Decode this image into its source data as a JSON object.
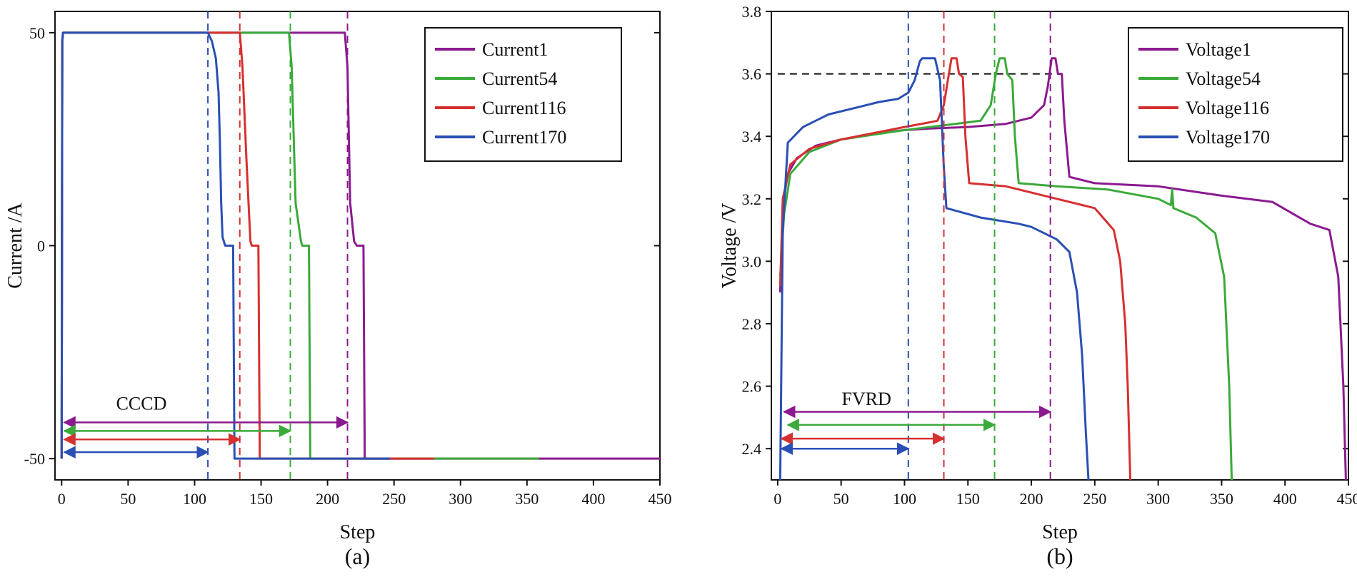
{
  "chart_data": [
    {
      "type": "line",
      "panel": "(a)",
      "caption": "(a)",
      "title": "",
      "xlabel": "Step",
      "ylabel": "Current /A",
      "xlim": [
        -5,
        450
      ],
      "ylim": [
        -55,
        55
      ],
      "xticks": [
        0,
        50,
        100,
        150,
        200,
        250,
        300,
        350,
        400,
        450
      ],
      "yticks": [
        -50,
        0,
        50
      ],
      "yticklabels": [
        "-50",
        "0",
        "50"
      ],
      "grid": false,
      "legend": "top-right",
      "series": [
        {
          "name": "Current1",
          "color": "#8b1a8f",
          "points": [
            [
              0,
              -50
            ],
            [
              0.5,
              48
            ],
            [
              1,
              50
            ],
            [
              213,
              50
            ],
            [
              215,
              42
            ],
            [
              217,
              10
            ],
            [
              220,
              1
            ],
            [
              222,
              0
            ],
            [
              227,
              0
            ],
            [
              228,
              -50
            ],
            [
              450,
              -50
            ]
          ]
        },
        {
          "name": "Current54",
          "color": "#3aaa3a",
          "points": [
            [
              0,
              -50
            ],
            [
              0.5,
              48
            ],
            [
              1,
              50
            ],
            [
              171,
              50
            ],
            [
              173,
              42
            ],
            [
              176,
              10
            ],
            [
              180,
              1
            ],
            [
              181,
              0
            ],
            [
              186,
              0
            ],
            [
              187,
              -50
            ],
            [
              359,
              -50
            ]
          ]
        },
        {
          "name": "Current116",
          "color": "#d63030",
          "points": [
            [
              0,
              -50
            ],
            [
              0.5,
              48
            ],
            [
              1,
              50
            ],
            [
              134,
              50
            ],
            [
              136,
              42
            ],
            [
              139,
              20
            ],
            [
              142,
              1
            ],
            [
              143,
              0
            ],
            [
              148,
              0
            ],
            [
              149,
              -50
            ],
            [
              280,
              -50
            ]
          ]
        },
        {
          "name": "Current170",
          "color": "#2a4fb5",
          "points": [
            [
              0,
              -50
            ],
            [
              0.5,
              48
            ],
            [
              1,
              50
            ],
            [
              110,
              50
            ],
            [
              113,
              48
            ],
            [
              116,
              44
            ],
            [
              118,
              36
            ],
            [
              119,
              25
            ],
            [
              120,
              10
            ],
            [
              121,
              2
            ],
            [
              123,
              0
            ],
            [
              129,
              0
            ],
            [
              130,
              -50
            ],
            [
              247,
              -50
            ]
          ]
        }
      ],
      "vlines": [
        {
          "x": 110,
          "color": "#2a4fb5"
        },
        {
          "x": 134,
          "color": "#d63030"
        },
        {
          "x": 172,
          "color": "#3aaa3a"
        },
        {
          "x": 215,
          "color": "#8b1a8f"
        }
      ],
      "arrows": [
        {
          "x0": 2,
          "x1": 215,
          "y": -41.5,
          "color": "#8b1a8f"
        },
        {
          "x0": 2,
          "x1": 172,
          "y": -43.5,
          "color": "#3aaa3a"
        },
        {
          "x0": 2,
          "x1": 134,
          "y": -45.5,
          "color": "#d63030"
        },
        {
          "x0": 2,
          "x1": 110,
          "y": -48.5,
          "color": "#2a4fb5"
        }
      ],
      "annotations": [
        {
          "text": "CCCD",
          "x": 60,
          "y": -38.5
        }
      ]
    },
    {
      "type": "line",
      "panel": "(b)",
      "caption": "(b)",
      "title": "",
      "xlabel": "Step",
      "ylabel": "Voltage /V",
      "xlim": [
        -5,
        450
      ],
      "ylim": [
        2.3,
        3.8
      ],
      "xticks": [
        0,
        50,
        100,
        150,
        200,
        250,
        300,
        350,
        400,
        450
      ],
      "yticks": [
        2.4,
        2.6,
        2.8,
        3.0,
        3.2,
        3.4,
        3.6,
        3.8
      ],
      "yticklabels": [
        "2.4",
        "2.6",
        "2.8",
        "3.0",
        "3.2",
        "3.4",
        "3.6",
        "3.8"
      ],
      "grid": false,
      "legend": "top-right",
      "series": [
        {
          "name": "Voltage1",
          "color": "#8b1a8f",
          "points": [
            [
              2,
              2.9
            ],
            [
              4,
              3.18
            ],
            [
              8,
              3.28
            ],
            [
              15,
              3.33
            ],
            [
              30,
              3.37
            ],
            [
              50,
              3.39
            ],
            [
              80,
              3.41
            ],
            [
              100,
              3.42
            ],
            [
              120,
              3.425
            ],
            [
              150,
              3.43
            ],
            [
              180,
              3.44
            ],
            [
              200,
              3.46
            ],
            [
              210,
              3.5
            ],
            [
              213,
              3.56
            ],
            [
              216,
              3.65
            ],
            [
              219,
              3.65
            ],
            [
              221,
              3.6
            ],
            [
              224,
              3.6
            ],
            [
              226,
              3.45
            ],
            [
              230,
              3.27
            ],
            [
              250,
              3.25
            ],
            [
              300,
              3.24
            ],
            [
              350,
              3.21
            ],
            [
              390,
              3.19
            ],
            [
              420,
              3.12
            ],
            [
              435,
              3.1
            ],
            [
              442,
              2.95
            ],
            [
              446,
              2.6
            ],
            [
              448,
              2.3
            ]
          ]
        },
        {
          "name": "Voltage54",
          "color": "#3aaa3a",
          "points": [
            [
              2,
              2.95
            ],
            [
              5,
              3.15
            ],
            [
              10,
              3.28
            ],
            [
              25,
              3.35
            ],
            [
              50,
              3.39
            ],
            [
              100,
              3.42
            ],
            [
              140,
              3.44
            ],
            [
              160,
              3.45
            ],
            [
              168,
              3.5
            ],
            [
              172,
              3.6
            ],
            [
              175,
              3.65
            ],
            [
              179,
              3.65
            ],
            [
              181,
              3.6
            ],
            [
              185,
              3.58
            ],
            [
              187,
              3.4
            ],
            [
              190,
              3.25
            ],
            [
              220,
              3.24
            ],
            [
              260,
              3.23
            ],
            [
              300,
              3.2
            ],
            [
              310,
              3.18
            ],
            [
              311,
              3.23
            ],
            [
              312,
              3.17
            ],
            [
              330,
              3.14
            ],
            [
              345,
              3.09
            ],
            [
              352,
              2.95
            ],
            [
              356,
              2.6
            ],
            [
              358,
              2.3
            ]
          ]
        },
        {
          "name": "Voltage116",
          "color": "#d63030",
          "points": [
            [
              2,
              2.92
            ],
            [
              4,
              3.2
            ],
            [
              10,
              3.31
            ],
            [
              25,
              3.36
            ],
            [
              50,
              3.39
            ],
            [
              100,
              3.43
            ],
            [
              120,
              3.445
            ],
            [
              126,
              3.45
            ],
            [
              131,
              3.5
            ],
            [
              135,
              3.6
            ],
            [
              137,
              3.65
            ],
            [
              141,
              3.65
            ],
            [
              143,
              3.6
            ],
            [
              146,
              3.59
            ],
            [
              148,
              3.4
            ],
            [
              151,
              3.25
            ],
            [
              180,
              3.24
            ],
            [
              220,
              3.2
            ],
            [
              250,
              3.17
            ],
            [
              265,
              3.1
            ],
            [
              270,
              3.0
            ],
            [
              274,
              2.8
            ],
            [
              276,
              2.6
            ],
            [
              278,
              2.3
            ]
          ]
        },
        {
          "name": "Voltage170",
          "color": "#2a4fb5",
          "points": [
            [
              2,
              2.3
            ],
            [
              4,
              3.1
            ],
            [
              8,
              3.38
            ],
            [
              20,
              3.43
            ],
            [
              40,
              3.47
            ],
            [
              60,
              3.49
            ],
            [
              80,
              3.51
            ],
            [
              95,
              3.52
            ],
            [
              103,
              3.54
            ],
            [
              108,
              3.58
            ],
            [
              112,
              3.64
            ],
            [
              114,
              3.65
            ],
            [
              124,
              3.65
            ],
            [
              128,
              3.58
            ],
            [
              131,
              3.3
            ],
            [
              133,
              3.17
            ],
            [
              160,
              3.14
            ],
            [
              190,
              3.12
            ],
            [
              200,
              3.11
            ],
            [
              220,
              3.07
            ],
            [
              230,
              3.03
            ],
            [
              236,
              2.9
            ],
            [
              240,
              2.7
            ],
            [
              243,
              2.45
            ],
            [
              245,
              2.3
            ]
          ]
        }
      ],
      "hline": {
        "y": 3.6,
        "x0": 0,
        "x1": 223,
        "color": "#111111"
      },
      "vlines": [
        {
          "x": 103,
          "color": "#2a4fb5"
        },
        {
          "x": 131,
          "color": "#d63030"
        },
        {
          "x": 171,
          "color": "#3aaa3a"
        },
        {
          "x": 215,
          "color": "#8b1a8f"
        }
      ],
      "arrows": [
        {
          "x0": 5,
          "x1": 215,
          "y": 2.518,
          "color": "#8b1a8f"
        },
        {
          "x0": 8,
          "x1": 171,
          "y": 2.476,
          "color": "#3aaa3a"
        },
        {
          "x0": 3,
          "x1": 131,
          "y": 2.432,
          "color": "#d63030"
        },
        {
          "x0": 3,
          "x1": 103,
          "y": 2.4,
          "color": "#2a4fb5"
        }
      ],
      "annotations": [
        {
          "text": "FVRD",
          "x": 70,
          "y": 2.54
        }
      ]
    }
  ]
}
